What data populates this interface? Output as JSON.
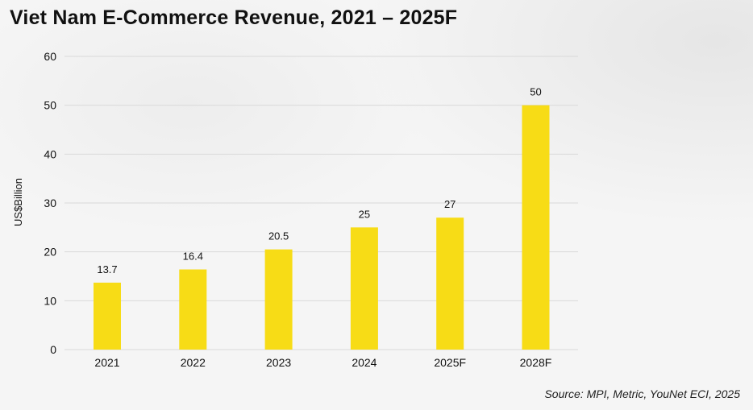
{
  "title": "Viet Nam E-Commerce Revenue, 2021 – 2025F",
  "source": "Source: MPI, Metric, YouNet ECI, 2025",
  "chart_data": {
    "type": "bar",
    "title": "Viet Nam E-Commerce Revenue, 2021 – 2025F",
    "xlabel": "",
    "ylabel": "US$Billion",
    "categories": [
      "2021",
      "2022",
      "2023",
      "2024",
      "2025F",
      "2028F"
    ],
    "values": [
      13.7,
      16.4,
      20.5,
      25,
      27,
      50
    ],
    "value_labels": [
      "13.7",
      "16.4",
      "20.5",
      "25",
      "27",
      "50"
    ],
    "ylim": [
      0,
      60
    ],
    "yticks": [
      0,
      10,
      20,
      30,
      40,
      50,
      60
    ],
    "grid": true,
    "legend": "none",
    "bar_color": "#f7dc16",
    "grid_color": "#d9d9d9"
  }
}
